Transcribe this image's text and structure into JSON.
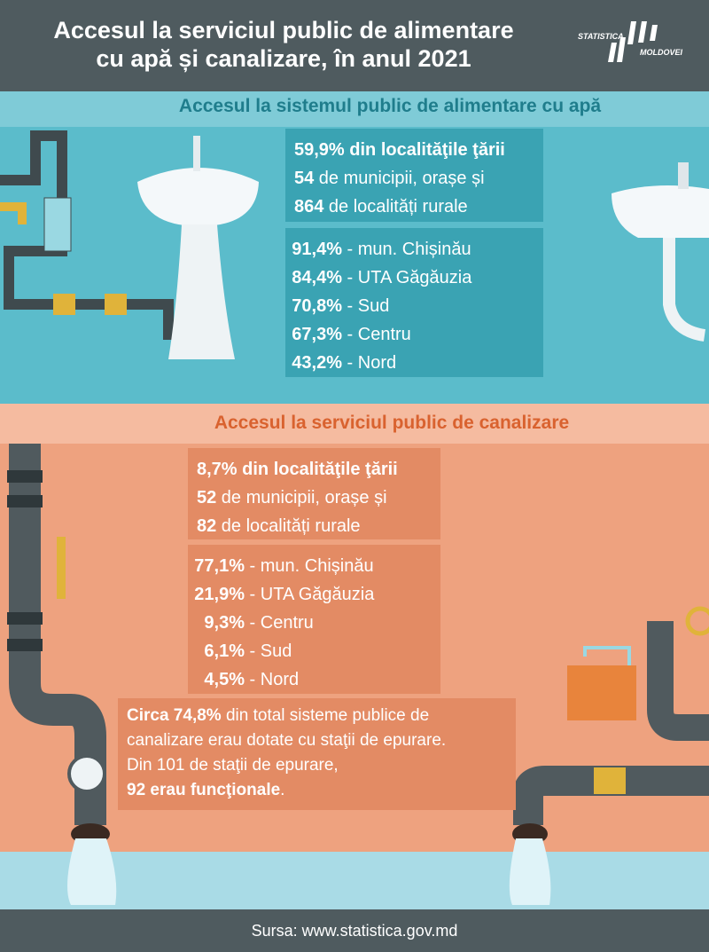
{
  "header": {
    "title_line1": "Accesul la serviciul public de alimentare",
    "title_line2": "cu apă și canalizare, în anul 2021",
    "logo_top": "STATISTICA",
    "logo_bottom": "MOLDOVEI"
  },
  "water": {
    "heading": "Accesul la sistemul public de alimentare cu apă",
    "summary": [
      {
        "bold": "59,9% din localităţile ţării"
      },
      {
        "bold": "54",
        "text": " de municipii, orașe și"
      },
      {
        "bold": "864",
        "text": " de localități rurale"
      }
    ],
    "regions": [
      {
        "value": "91,4%",
        "label": " - mun. Chișinău"
      },
      {
        "value": "84,4%",
        "label": " - UTA Găgăuzia"
      },
      {
        "value": "70,8%",
        "label": " - Sud"
      },
      {
        "value": "67,3%",
        "label": " - Centru"
      },
      {
        "value": "43,2%",
        "label": " - Nord"
      }
    ]
  },
  "sewerage": {
    "heading": "Accesul la serviciul public de canalizare",
    "summary": [
      {
        "bold": "8,7% din localităţile ţării"
      },
      {
        "bold": "52",
        "text": " de municipii, orașe și"
      },
      {
        "bold": "82",
        "text": " de localități rurale"
      }
    ],
    "regions": [
      {
        "value": "77,1%",
        "label": " - mun. Chișinău"
      },
      {
        "value": "21,9%",
        "label": " - UTA Găgăuzia"
      },
      {
        "value": "9,3%",
        "label": " - Centru"
      },
      {
        "value": "6,1%",
        "label": " - Sud"
      },
      {
        "value": "4,5%",
        "label": " - Nord"
      }
    ],
    "note": [
      {
        "bold": "Circa 74,8%",
        "text": " din total sisteme publice de"
      },
      {
        "text": "canalizare erau dotate cu staţii de epurare."
      },
      {
        "text": "Din 101 de staţii de epurare,"
      },
      {
        "bold": "92 erau funcţionale",
        "text": "."
      }
    ]
  },
  "footer": "Sursa: www.statistica.gov.md"
}
